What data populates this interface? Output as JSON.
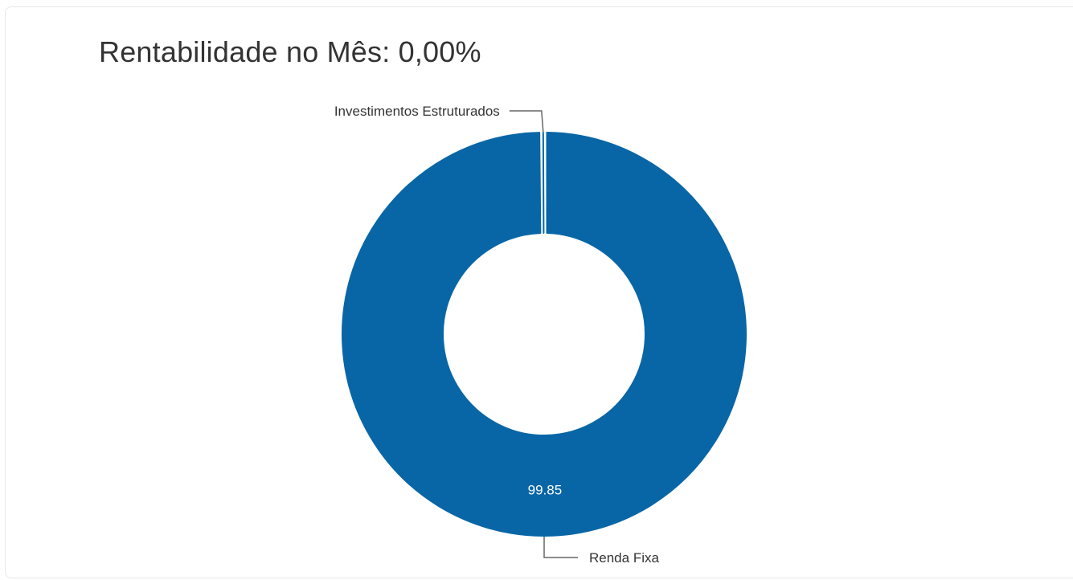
{
  "header": {
    "title": "Rentabilidade no Mês: 0,00%"
  },
  "colors": {
    "slice": "#0866a6",
    "connector": "#666666",
    "value_text": "#ffffff",
    "label_text": "#333333"
  },
  "chart_data": {
    "type": "pie",
    "variant": "donut",
    "title": "Rentabilidade no Mês: 0,00%",
    "categories": [
      "Renda Fixa",
      "Investimentos Estruturados"
    ],
    "values": [
      99.85,
      0.15
    ],
    "data_labels": [
      "99.85",
      ""
    ],
    "legend": "none"
  }
}
